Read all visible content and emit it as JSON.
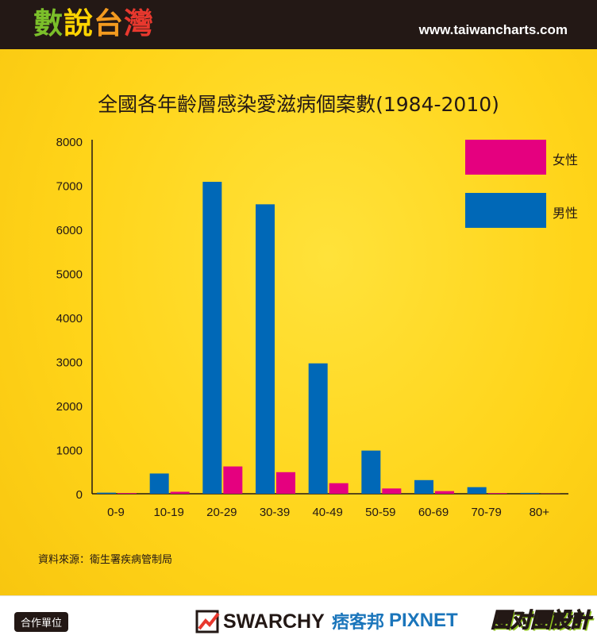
{
  "header": {
    "brand_chars": [
      "數",
      "說",
      "台",
      "灣"
    ],
    "site_url": "www.taiwancharts.com"
  },
  "source_note": "資料來源：衛生署疾病管制局",
  "footer": {
    "partner_label": "合作單位",
    "swarchy": "SWARCHY",
    "pixnet_cn": "痞客邦",
    "pixnet_en": "PIXNET",
    "design": "團对團設計"
  },
  "colors": {
    "female": "#e5007f",
    "male": "#0068b7",
    "axis": "#231815"
  },
  "chart_data": {
    "type": "bar",
    "title": "全國各年齡層感染愛滋病個案數(1984-2010)",
    "categories": [
      "0-9",
      "10-19",
      "20-29",
      "30-39",
      "40-49",
      "50-59",
      "60-69",
      "70-79",
      "80+"
    ],
    "series": [
      {
        "name": "男性",
        "color": "#0068b7",
        "values": [
          25,
          460,
          7080,
          6570,
          2960,
          980,
          310,
          150,
          20
        ]
      },
      {
        "name": "女性",
        "color": "#e5007f",
        "values": [
          15,
          45,
          620,
          490,
          240,
          120,
          60,
          15,
          5
        ]
      }
    ],
    "legend_order": [
      "女性",
      "男性"
    ],
    "ylim": [
      0,
      8000
    ],
    "yticks": [
      0,
      1000,
      2000,
      3000,
      4000,
      5000,
      6000,
      7000,
      8000
    ],
    "xlabel": "",
    "ylabel": "",
    "legend_position": "top-right",
    "grid": false
  }
}
